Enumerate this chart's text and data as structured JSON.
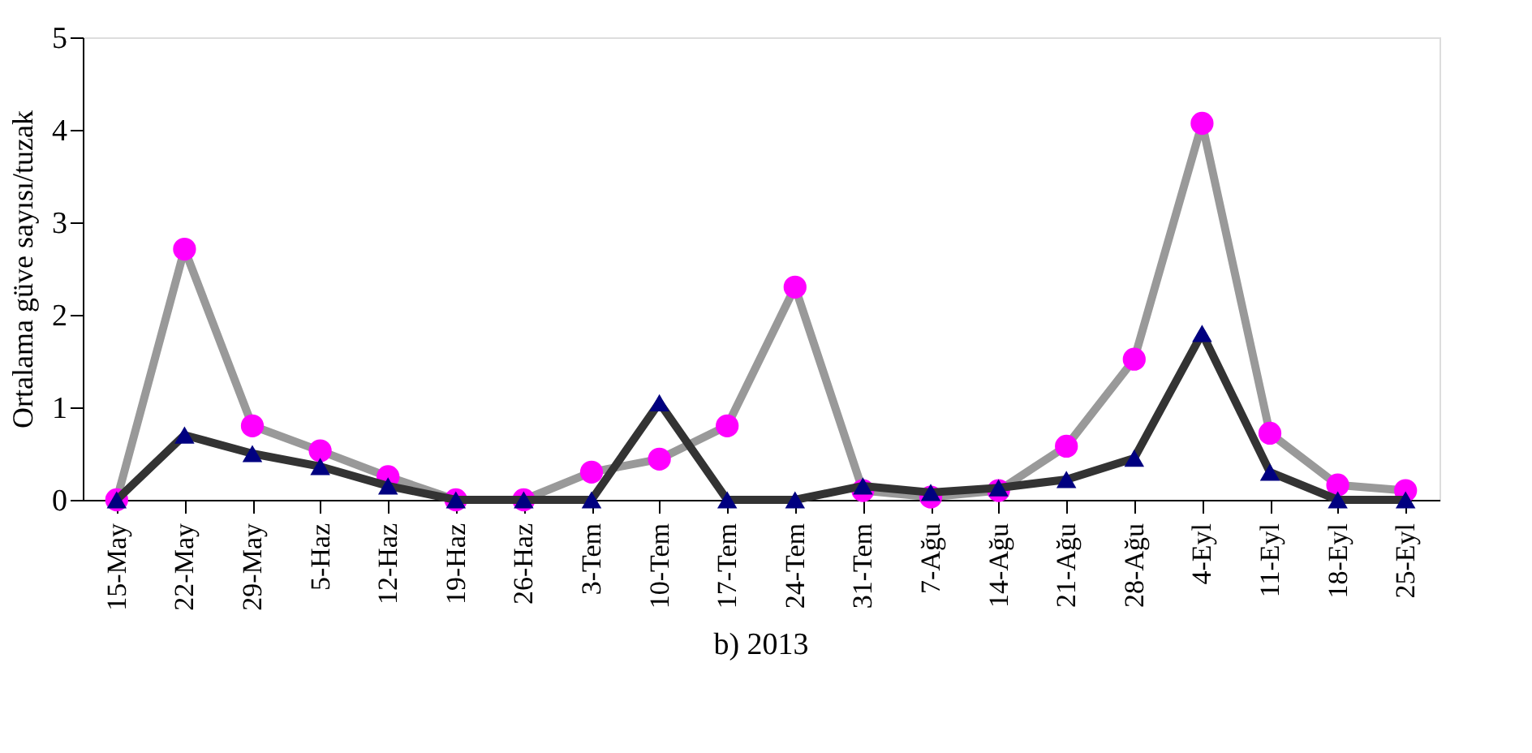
{
  "chart_data": {
    "type": "line",
    "title": "b) 2013",
    "ylabel": "Ortalama  güve sayısı/tuzak",
    "categories": [
      "15-May",
      "22-May",
      "29-May",
      "5-Haz",
      "12-Haz",
      "19-Haz",
      "26-Haz",
      "3-Tem",
      "10-Tem",
      "17-Tem",
      "24-Tem",
      "31-Tem",
      "7-Ağu",
      "14-Ağu",
      "21-Ağu",
      "28-Ağu",
      "4-Eyl",
      "11-Eyl",
      "18-Eyl",
      "25-Eyl"
    ],
    "series": [
      {
        "color": "#999999",
        "marker": "circle",
        "values": [
          0,
          2.71,
          0.8,
          0.53,
          0.25,
          0,
          0,
          0.3,
          0.44,
          0.8,
          2.3,
          0.1,
          0.03,
          0.1,
          0.58,
          1.52,
          4.07,
          0.72,
          0.16,
          0.1
        ]
      },
      {
        "color": "#333333",
        "marker": "triangle",
        "values": [
          0,
          0.7,
          0.5,
          0.36,
          0.15,
          0,
          0,
          0,
          1.05,
          0,
          0,
          0.15,
          0.08,
          0.13,
          0.22,
          0.45,
          1.8,
          0.3,
          0,
          0
        ]
      }
    ],
    "ylim": [
      0,
      5
    ],
    "yticks": [
      0,
      1,
      2,
      3,
      4,
      5
    ],
    "grid": false
  }
}
